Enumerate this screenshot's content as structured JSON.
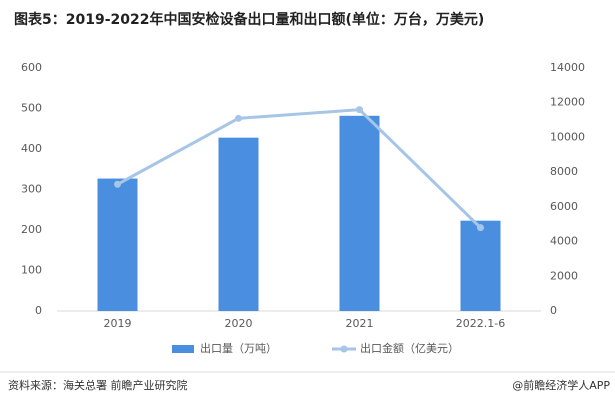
{
  "chart_data": {
    "type": "bar",
    "title": "图表5：2019-2022年中国安检设备出口量和出口额(单位：万台，万美元)",
    "categories": [
      "2019",
      "2020",
      "2021",
      "2022.1-6"
    ],
    "series": [
      {
        "name": "出口量（万吨）",
        "type": "bar",
        "color": "#4a8ee0",
        "values": [
          327,
          428,
          482,
          223
        ]
      },
      {
        "name": "出口金额（亿美元）",
        "type": "line",
        "axis": "y2",
        "color": "#a7c5e6",
        "values": [
          7300,
          11100,
          11600,
          4800
        ]
      }
    ],
    "ylim": [
      0,
      600
    ],
    "yticks": [
      0,
      100,
      200,
      300,
      400,
      500,
      600
    ],
    "y2lim": [
      0,
      14000
    ],
    "y2ticks": [
      0,
      2000,
      4000,
      6000,
      8000,
      10000,
      12000,
      14000
    ],
    "legend": "bottom",
    "source": "资料来源：海关总署 前瞻产业研究院",
    "credit": "@前瞻经济学人APP"
  }
}
